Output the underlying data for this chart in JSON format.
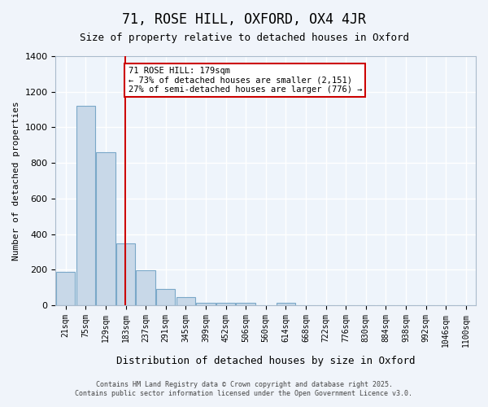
{
  "title1": "71, ROSE HILL, OXFORD, OX4 4JR",
  "title2": "Size of property relative to detached houses in Oxford",
  "xlabel": "Distribution of detached houses by size in Oxford",
  "ylabel": "Number of detached properties",
  "categories": [
    "21sqm",
    "75sqm",
    "129sqm",
    "183sqm",
    "237sqm",
    "291sqm",
    "345sqm",
    "399sqm",
    "452sqm",
    "506sqm",
    "560sqm",
    "614sqm",
    "668sqm",
    "722sqm",
    "776sqm",
    "830sqm",
    "884sqm",
    "938sqm",
    "992sqm",
    "1046sqm",
    "1100sqm"
  ],
  "values": [
    190,
    1120,
    860,
    350,
    195,
    90,
    45,
    15,
    15,
    15,
    0,
    15,
    0,
    0,
    0,
    0,
    0,
    0,
    0,
    0,
    0
  ],
  "bar_color": "#c8d8e8",
  "bar_edge_color": "#7aa8c8",
  "bg_color": "#eef4fb",
  "grid_color": "#ffffff",
  "redline_x": 3,
  "annotation_text": "71 ROSE HILL: 179sqm\n← 73% of detached houses are smaller (2,151)\n27% of semi-detached houses are larger (776) →",
  "annotation_box_color": "#cc0000",
  "ylim": [
    0,
    1400
  ],
  "yticks": [
    0,
    200,
    400,
    600,
    800,
    1000,
    1200,
    1400
  ],
  "footer1": "Contains HM Land Registry data © Crown copyright and database right 2025.",
  "footer2": "Contains public sector information licensed under the Open Government Licence v3.0."
}
